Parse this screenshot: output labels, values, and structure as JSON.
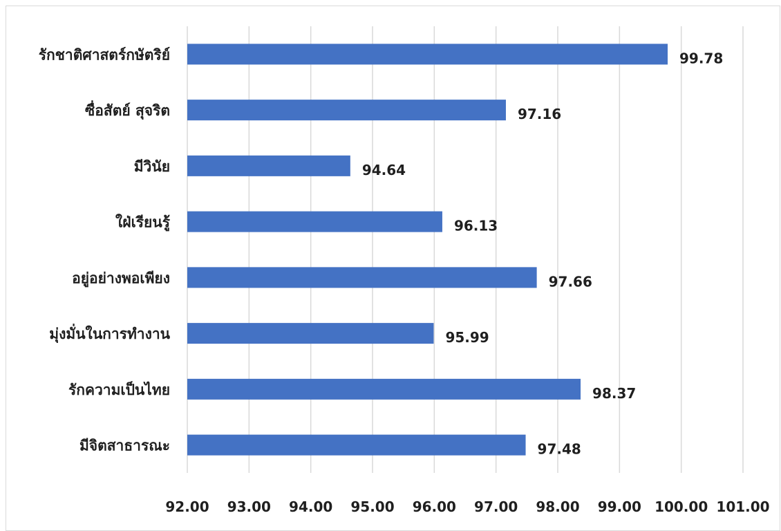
{
  "chart_data": {
    "type": "bar",
    "orientation": "horizontal",
    "title": "",
    "xlabel": "",
    "ylabel": "",
    "categories": [
      "รักชาติศาสตร์กษัตริย์",
      "ซื่อสัตย์ สุจริต",
      "มีวินัย",
      "ใฝ่เรียนรู้",
      "อยู่อย่างพอเพียง",
      "มุ่งมั่นในการทำงาน",
      "รักความเป็นไทย",
      "มีจิตสาธารณะ"
    ],
    "values": [
      99.78,
      97.16,
      94.64,
      96.13,
      97.66,
      95.99,
      98.37,
      97.48
    ],
    "data_labels": [
      "99.78",
      "97.16",
      "94.64",
      "96.13",
      "97.66",
      "95.99",
      "98.37",
      "97.48"
    ],
    "xlim": [
      92,
      101
    ],
    "xticks": [
      "92.00",
      "93.00",
      "94.00",
      "95.00",
      "96.00",
      "97.00",
      "98.00",
      "99.00",
      "100.00",
      "101.00"
    ],
    "grid": "vertical",
    "legend": "none",
    "bar_color": "#4472c4"
  }
}
